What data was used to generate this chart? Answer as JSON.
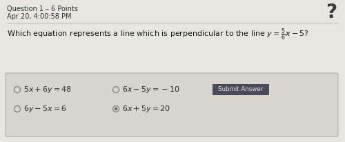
{
  "bg_color": "#e8e6e1",
  "header_text1": "Question 1 – 6 Points",
  "header_text2": "Apr 20, 4:00:58 PM",
  "question_color": "#1a1a1a",
  "option_color": "#2a2a2a",
  "box_bg": "#d8d5cf",
  "box_border": "#b0aca5",
  "button_bg": "#4a4a5a",
  "button_text_color": "#e8e6e1",
  "button_text": "Submit Answer",
  "separator_color": "#b0aca5",
  "header_color": "#2e2e2e",
  "question_mark_color": "#3a3a3a",
  "circle_color": "#888888",
  "circle_selected_color": "#666666"
}
